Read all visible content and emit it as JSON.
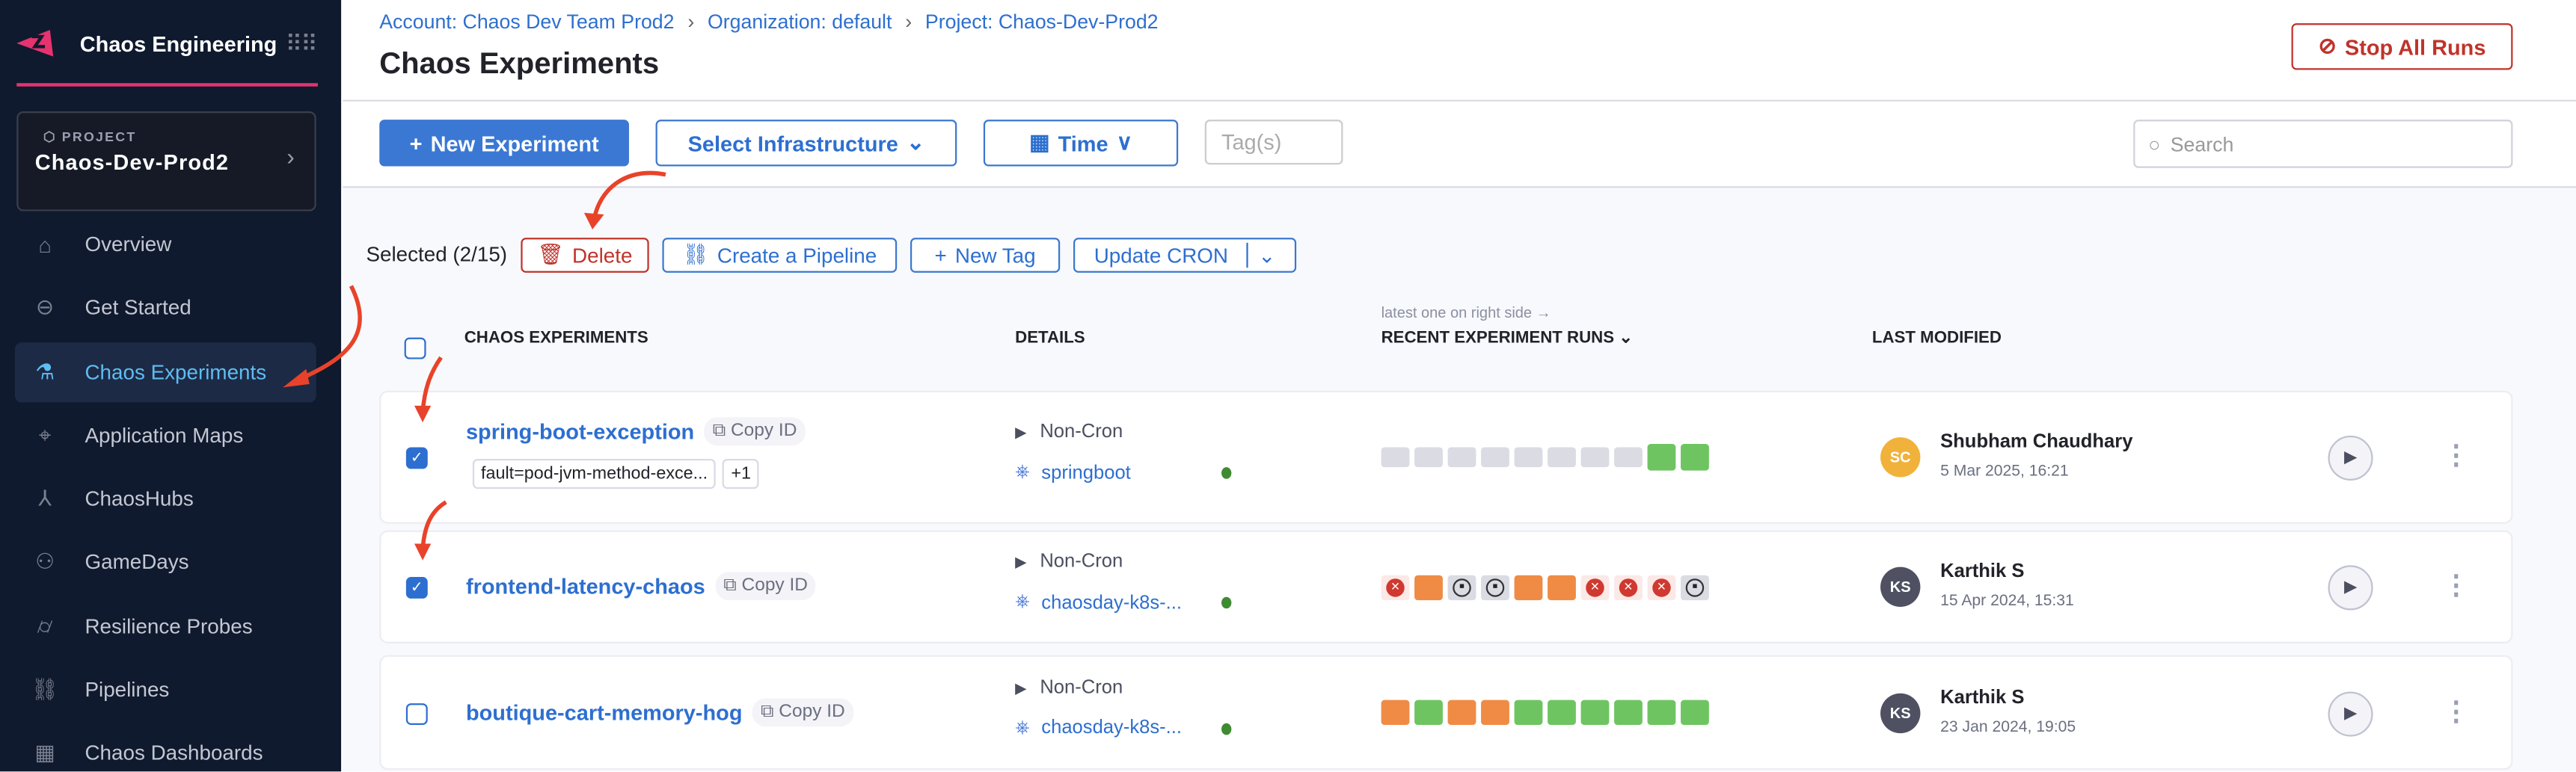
{
  "sidebar": {
    "app_title": "Chaos Engineering",
    "project_label": "PROJECT",
    "project_name": "Chaos-Dev-Prod2",
    "items": [
      {
        "label": "Overview",
        "icon": "home-icon"
      },
      {
        "label": "Get Started",
        "icon": "get-started-icon"
      },
      {
        "label": "Chaos Experiments",
        "icon": "flask-icon",
        "active": true
      },
      {
        "label": "Application Maps",
        "icon": "crosshair-icon"
      },
      {
        "label": "ChaosHubs",
        "icon": "hub-icon"
      },
      {
        "label": "GameDays",
        "icon": "people-icon"
      },
      {
        "label": "Resilience Probes",
        "icon": "probe-icon"
      },
      {
        "label": "Pipelines",
        "icon": "pipeline-icon"
      },
      {
        "label": "Chaos Dashboards",
        "icon": "dashboard-icon"
      }
    ]
  },
  "breadcrumb": [
    "Account: Chaos Dev Team Prod2",
    "Organization: default",
    "Project: Chaos-Dev-Prod2"
  ],
  "page_title": "Chaos Experiments",
  "stop_all_label": "Stop All Runs",
  "toolbar": {
    "new_experiment": "New Experiment",
    "select_infra": "Select Infrastructure",
    "time": "Time",
    "tags_placeholder": "Tag(s)",
    "search_placeholder": "Search"
  },
  "bulk": {
    "selected": "Selected (2/15)",
    "delete": "Delete",
    "pipeline": "Create a Pipeline",
    "new_tag": "New Tag",
    "update_cron": "Update CRON"
  },
  "columns": {
    "experiments": "CHAOS EXPERIMENTS",
    "details": "DETAILS",
    "runs": "RECENT EXPERIMENT RUNS",
    "runs_hint": "latest one on right side →",
    "modified": "LAST MODIFIED"
  },
  "copy_id": "Copy ID",
  "status_colors": {
    "success": "#6fc462",
    "error": "#d0392f",
    "stopped": "#dadbe3",
    "partial": "#ef8b44",
    "none": "#dadbe3"
  },
  "rows": [
    {
      "name": "spring-boot-exception",
      "checked": true,
      "tags": [
        "fault=pod-jvm-method-exce...",
        "+1"
      ],
      "schedule": "Non-Cron",
      "infra": "springboot",
      "runs": [
        "none",
        "none",
        "none",
        "none",
        "none",
        "none",
        "none",
        "none",
        "success",
        "success"
      ],
      "avatar": "SC",
      "avatar_color": "#f1b23b",
      "user": "Shubham Chaudhary",
      "date": "5 Mar 2025, 16:21"
    },
    {
      "name": "frontend-latency-chaos",
      "checked": true,
      "tags": [],
      "schedule": "Non-Cron",
      "infra": "chaosday-k8s-...",
      "runs": [
        "error",
        "partial",
        "stopped",
        "stopped",
        "partial",
        "partial",
        "error",
        "error",
        "error",
        "stopped"
      ],
      "avatar": "KS",
      "avatar_color": "#4f5162",
      "user": "Karthik S",
      "date": "15 Apr 2024, 15:31"
    },
    {
      "name": "boutique-cart-memory-hog",
      "checked": false,
      "tags": [],
      "schedule": "Non-Cron",
      "infra": "chaosday-k8s-...",
      "runs": [
        "partial",
        "success",
        "partial",
        "partial",
        "success",
        "success",
        "success",
        "success",
        "success",
        "success"
      ],
      "avatar": "KS",
      "avatar_color": "#4f5162",
      "user": "Karthik S",
      "date": "23 Jan 2024, 19:05"
    }
  ]
}
